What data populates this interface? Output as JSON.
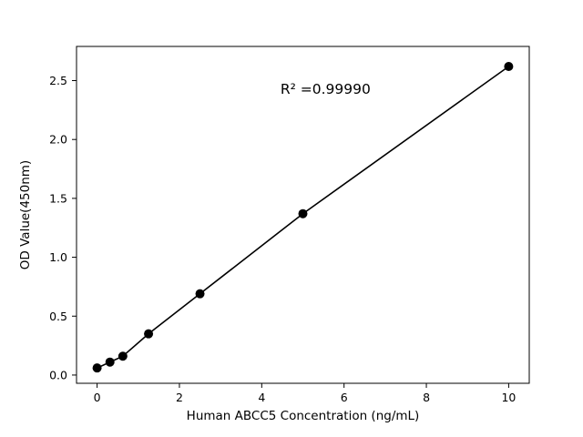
{
  "chart_data": {
    "type": "scatter",
    "title": "",
    "xlabel": "Human ABCC5 Concentration (ng/mL)",
    "ylabel": "OD Value(450nm)",
    "annotation": "R² =0.99990",
    "x": [
      0,
      0.3125,
      0.625,
      1.25,
      2.5,
      5,
      10
    ],
    "y": [
      0.06,
      0.11,
      0.16,
      0.35,
      0.69,
      1.37,
      2.62
    ],
    "xticks": [
      0,
      2,
      4,
      6,
      8,
      10
    ],
    "xtick_labels": [
      "0",
      "2",
      "4",
      "6",
      "8",
      "10"
    ],
    "yticks": [
      0.0,
      0.5,
      1.0,
      1.5,
      2.0,
      2.5
    ],
    "ytick_labels": [
      "0.0",
      "0.5",
      "1.0",
      "1.5",
      "2.0",
      "2.5"
    ],
    "xlim": [
      -0.5,
      10.5
    ],
    "ylim": [
      -0.07,
      2.79
    ],
    "grid": false,
    "legend": "none",
    "line_color": "#000000",
    "marker_color": "#000000",
    "frame_color": "#000000",
    "background": "#ffffff",
    "annotation_pos_fraction": {
      "x": 0.55,
      "y": 0.86
    }
  }
}
